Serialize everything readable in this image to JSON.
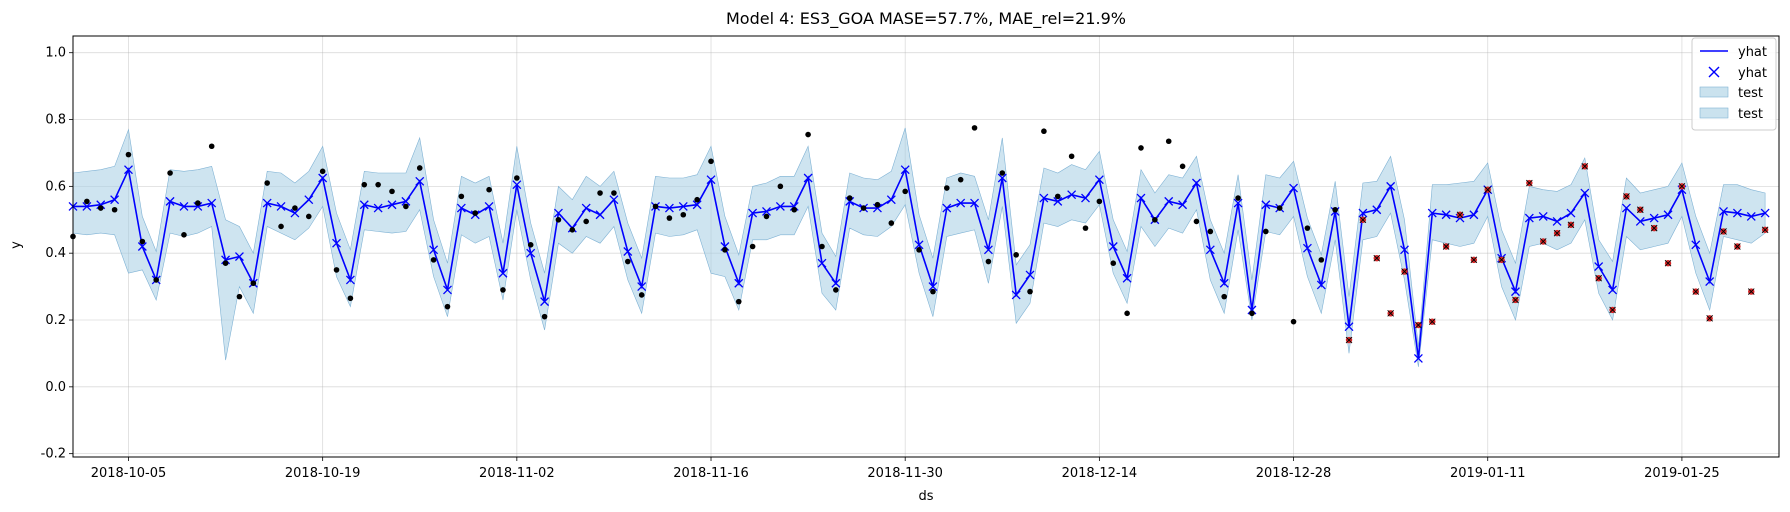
{
  "chart_data": {
    "type": "line",
    "title": "Model 4: ES3_GOA MASE=57.7%, MAE_rel=21.9%",
    "xlabel": "ds",
    "ylabel": "y",
    "x_start": "2018-10-01",
    "xlim": [
      "2018-10-01",
      "2019-02-01"
    ],
    "ylim": [
      -0.21,
      1.05
    ],
    "xticks": [
      "2018-10-05",
      "2018-10-19",
      "2018-11-02",
      "2018-11-16",
      "2018-11-30",
      "2018-12-14",
      "2018-12-28",
      "2019-01-11",
      "2019-01-25"
    ],
    "yticks": [
      "-0.2",
      "0.0",
      "0.2",
      "0.4",
      "0.6",
      "0.8",
      "1.0"
    ],
    "grid": true,
    "legend_position": "top-right",
    "legend": [
      {
        "label": "yhat",
        "kind": "line"
      },
      {
        "label": "yhat",
        "kind": "marker"
      },
      {
        "label": "test",
        "kind": "band"
      },
      {
        "label": "test",
        "kind": "band"
      }
    ],
    "colors": {
      "yhat": "#0000ff",
      "band": "#a6cee3",
      "actual": "#000000",
      "test_points": "#d62728"
    },
    "series": [
      {
        "name": "yhat",
        "values": [
          0.54,
          0.54,
          0.545,
          0.56,
          0.65,
          0.42,
          0.32,
          0.555,
          0.54,
          0.54,
          0.55,
          0.38,
          0.39,
          0.31,
          0.55,
          0.54,
          0.52,
          0.56,
          0.625,
          0.43,
          0.32,
          0.545,
          0.535,
          0.545,
          0.555,
          0.615,
          0.41,
          0.29,
          0.535,
          0.515,
          0.54,
          0.34,
          0.605,
          0.4,
          0.255,
          0.52,
          0.475,
          0.535,
          0.515,
          0.56,
          0.405,
          0.3,
          0.54,
          0.535,
          0.54,
          0.545,
          0.62,
          0.42,
          0.31,
          0.52,
          0.525,
          0.54,
          0.54,
          0.625,
          0.37,
          0.31,
          0.555,
          0.535,
          0.535,
          0.56,
          0.65,
          0.425,
          0.3,
          0.535,
          0.55,
          0.55,
          0.41,
          0.625,
          0.275,
          0.335,
          0.565,
          0.555,
          0.575,
          0.565,
          0.62,
          0.42,
          0.325,
          0.565,
          0.5,
          0.555,
          0.545,
          0.61,
          0.41,
          0.31,
          0.55,
          0.23,
          0.545,
          0.535,
          0.595,
          0.415,
          0.305,
          0.525,
          0.18,
          0.52,
          0.53,
          0.6,
          0.41,
          0.085,
          0.52,
          0.515,
          0.505,
          0.515,
          0.59,
          0.385,
          0.285,
          0.505,
          0.51,
          0.495,
          0.52,
          0.58,
          0.36,
          0.29,
          0.535,
          0.495,
          0.505,
          0.515,
          0.59,
          0.425,
          0.315,
          0.525,
          0.52,
          0.51,
          0.52
        ]
      },
      {
        "name": "test",
        "lower": [
          0.46,
          0.455,
          0.46,
          0.455,
          0.34,
          0.35,
          0.26,
          0.46,
          0.45,
          0.46,
          0.48,
          0.08,
          0.3,
          0.22,
          0.48,
          0.46,
          0.44,
          0.475,
          0.54,
          0.33,
          0.24,
          0.47,
          0.465,
          0.46,
          0.465,
          0.53,
          0.33,
          0.21,
          0.455,
          0.43,
          0.45,
          0.26,
          0.53,
          0.32,
          0.17,
          0.43,
          0.4,
          0.45,
          0.43,
          0.48,
          0.32,
          0.22,
          0.46,
          0.45,
          0.455,
          0.47,
          0.34,
          0.33,
          0.23,
          0.44,
          0.44,
          0.455,
          0.455,
          0.54,
          0.28,
          0.23,
          0.475,
          0.455,
          0.45,
          0.48,
          0.545,
          0.34,
          0.21,
          0.45,
          0.46,
          0.47,
          0.31,
          0.54,
          0.19,
          0.25,
          0.49,
          0.48,
          0.5,
          0.49,
          0.545,
          0.34,
          0.25,
          0.48,
          0.42,
          0.475,
          0.46,
          0.53,
          0.32,
          0.22,
          0.47,
          0.2,
          0.465,
          0.455,
          0.51,
          0.33,
          0.22,
          0.44,
          0.1,
          0.44,
          0.45,
          0.52,
          0.32,
          0.06,
          0.44,
          0.43,
          0.42,
          0.43,
          0.51,
          0.3,
          0.2,
          0.42,
          0.43,
          0.41,
          0.43,
          0.5,
          0.28,
          0.2,
          0.45,
          0.41,
          0.42,
          0.43,
          0.51,
          0.34,
          0.23,
          0.45,
          0.44,
          0.43,
          0.46
        ],
        "upper": [
          0.64,
          0.645,
          0.65,
          0.66,
          0.77,
          0.51,
          0.405,
          0.65,
          0.645,
          0.65,
          0.66,
          0.5,
          0.48,
          0.4,
          0.645,
          0.64,
          0.61,
          0.645,
          0.72,
          0.52,
          0.41,
          0.645,
          0.64,
          0.64,
          0.64,
          0.745,
          0.5,
          0.37,
          0.63,
          0.61,
          0.63,
          0.43,
          0.72,
          0.49,
          0.34,
          0.6,
          0.56,
          0.63,
          0.6,
          0.645,
          0.49,
          0.385,
          0.63,
          0.625,
          0.625,
          0.635,
          0.72,
          0.51,
          0.395,
          0.6,
          0.61,
          0.63,
          0.63,
          0.72,
          0.46,
          0.39,
          0.64,
          0.625,
          0.62,
          0.645,
          0.775,
          0.515,
          0.385,
          0.625,
          0.64,
          0.63,
          0.5,
          0.745,
          0.365,
          0.425,
          0.655,
          0.64,
          0.665,
          0.65,
          0.705,
          0.5,
          0.405,
          0.65,
          0.58,
          0.635,
          0.625,
          0.69,
          0.5,
          0.4,
          0.635,
          0.32,
          0.635,
          0.625,
          0.675,
          0.505,
          0.395,
          0.615,
          0.27,
          0.61,
          0.615,
          0.69,
          0.5,
          0.12,
          0.605,
          0.605,
          0.61,
          0.615,
          0.67,
          0.47,
          0.37,
          0.6,
          0.59,
          0.585,
          0.605,
          0.685,
          0.44,
          0.375,
          0.625,
          0.58,
          0.59,
          0.6,
          0.67,
          0.51,
          0.4,
          0.605,
          0.605,
          0.59,
          0.58
        ]
      },
      {
        "name": "actual",
        "values": [
          0.45,
          0.555,
          0.535,
          0.53,
          0.695,
          0.435,
          0.32,
          0.64,
          0.455,
          0.55,
          0.72,
          0.37,
          0.27,
          0.31,
          0.61,
          0.48,
          0.535,
          0.51,
          0.645,
          0.35,
          0.265,
          0.605,
          0.605,
          0.585,
          0.54,
          0.655,
          0.38,
          0.24,
          0.57,
          0.52,
          0.59,
          0.29,
          0.625,
          0.425,
          0.21,
          0.5,
          0.47,
          0.495,
          0.58,
          0.58,
          0.375,
          0.275,
          0.54,
          0.505,
          0.515,
          0.56,
          0.675,
          0.41,
          0.255,
          0.42,
          0.51,
          0.6,
          0.53,
          0.755,
          0.42,
          0.29,
          0.565,
          0.535,
          0.545,
          0.49,
          0.585,
          0.41,
          0.285,
          0.595,
          0.62,
          0.775,
          0.375,
          0.64,
          0.395,
          0.285,
          0.765,
          0.57,
          0.69,
          0.475,
          0.555,
          0.37,
          0.22,
          0.715,
          0.5,
          0.735,
          0.66,
          0.495,
          0.465,
          0.27,
          0.565,
          0.22,
          0.465,
          0.535,
          0.195,
          0.475,
          0.38,
          0.53
        ]
      },
      {
        "name": "test_points",
        "values": [
          0.14,
          0.5,
          0.385,
          0.22,
          0.345,
          0.185,
          0.195,
          0.42,
          0.515,
          0.38,
          0.59,
          0.38,
          0.26,
          0.61,
          0.435,
          0.46,
          0.485,
          0.66,
          0.325,
          0.23,
          0.57,
          0.53,
          0.475,
          0.37,
          0.6,
          0.285,
          0.205,
          0.465,
          0.42,
          0.285,
          0.47
        ]
      }
    ]
  }
}
